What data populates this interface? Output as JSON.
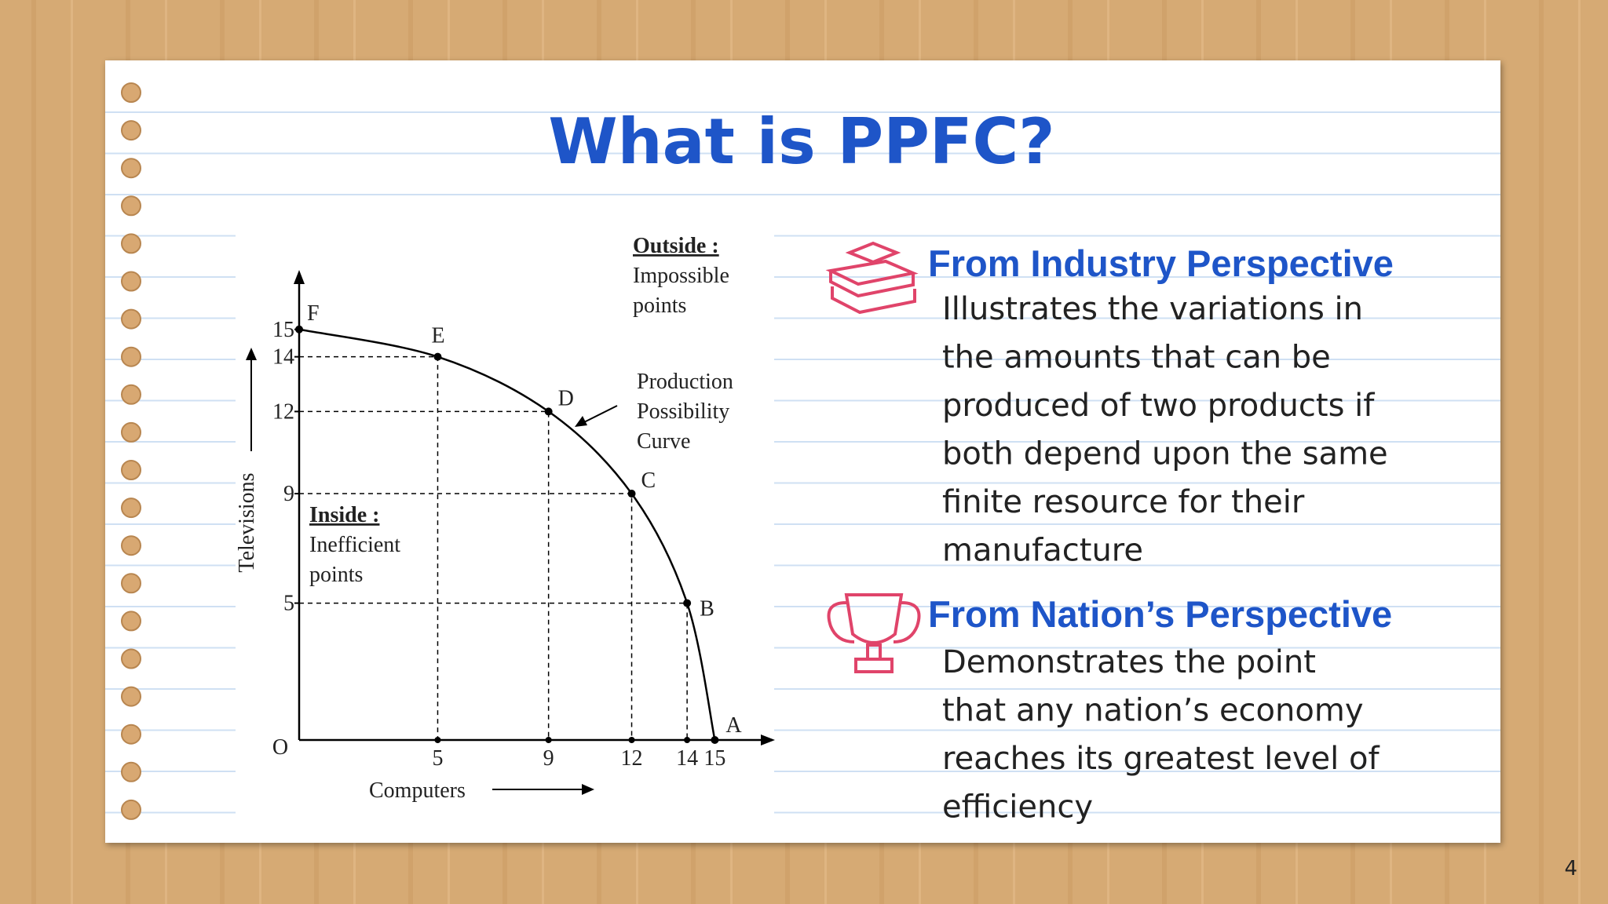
{
  "slide": {
    "title": "What is PPFC?",
    "page_number": 4
  },
  "sections": [
    {
      "heading": "From Industry Perspective",
      "lines": [
        "Illustrates the variations in",
        "the amounts that can be",
        "produced of two products if",
        "both depend upon the same",
        "finite resource for their",
        "manufacture"
      ]
    },
    {
      "heading": "From Nation’s Perspective",
      "lines": [
        "Demonstrates the point",
        "that any nation’s economy",
        "reaches its greatest level of",
        "efficiency"
      ]
    }
  ],
  "chart_data": {
    "type": "line",
    "x_label": "Computers",
    "y_label": "Televisions",
    "origin_label": "O",
    "x": [
      0,
      5,
      9,
      12,
      14,
      15
    ],
    "series": [
      {
        "values": [
          15,
          14,
          12,
          9,
          5,
          0
        ],
        "point_labels": [
          "F",
          "E",
          "D",
          "C",
          "B",
          "A"
        ],
        "color": "#000000"
      }
    ],
    "xlim": [
      0,
      17
    ],
    "ylim": [
      0,
      17
    ],
    "xticks": [
      5,
      9,
      12,
      14,
      15
    ],
    "yticks": [
      5,
      9,
      12,
      14,
      15
    ],
    "annotations": {
      "outside": {
        "title": "Outside :",
        "lines": [
          "Impossible",
          "points"
        ]
      },
      "curve": {
        "lines": [
          "Production",
          "Possibility",
          "Curve"
        ]
      },
      "inside": {
        "title": "Inside :",
        "lines": [
          "Inefficient",
          "points"
        ]
      }
    }
  }
}
